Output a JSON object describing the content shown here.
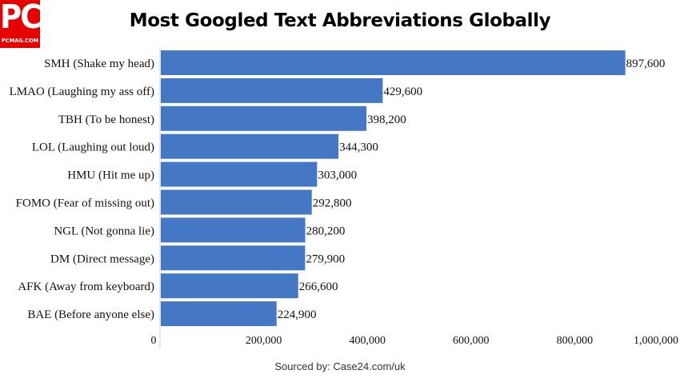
{
  "logo": {
    "main": "PC",
    "sub": "PCMAG.COM"
  },
  "source": "Sourced by: Case24.com/uk",
  "colors": {
    "bar": "#4477c4",
    "logo": "#e60000"
  },
  "chart_data": {
    "type": "bar",
    "orientation": "horizontal",
    "title": "Most Googled Text Abbreviations Globally",
    "categories": [
      "SMH (Shake my head)",
      "LMAO (Laughing my ass off)",
      "TBH (To be honest)",
      "LOL (Laughing out loud)",
      "HMU (Hit me up)",
      "FOMO (Fear of missing out)",
      "NGL (Not gonna lie)",
      "DM (Direct message)",
      "AFK (Away from keyboard)",
      "BAE (Before anyone else)"
    ],
    "values": [
      897600,
      429600,
      398200,
      344300,
      303000,
      292800,
      280200,
      279900,
      266600,
      224900
    ],
    "value_labels": [
      "897,600",
      "429,600",
      "398,200",
      "344,300",
      "303,000",
      "292,800",
      "280,200",
      "279,900",
      "266,600",
      "224,900"
    ],
    "xlim": [
      0,
      1000000
    ],
    "xticks": [
      0,
      200000,
      400000,
      600000,
      800000,
      1000000
    ],
    "xtick_labels": [
      "0",
      "200,000",
      "400,000",
      "600,000",
      "800,000",
      "1,000,000"
    ],
    "grid": false,
    "legend": "none"
  }
}
